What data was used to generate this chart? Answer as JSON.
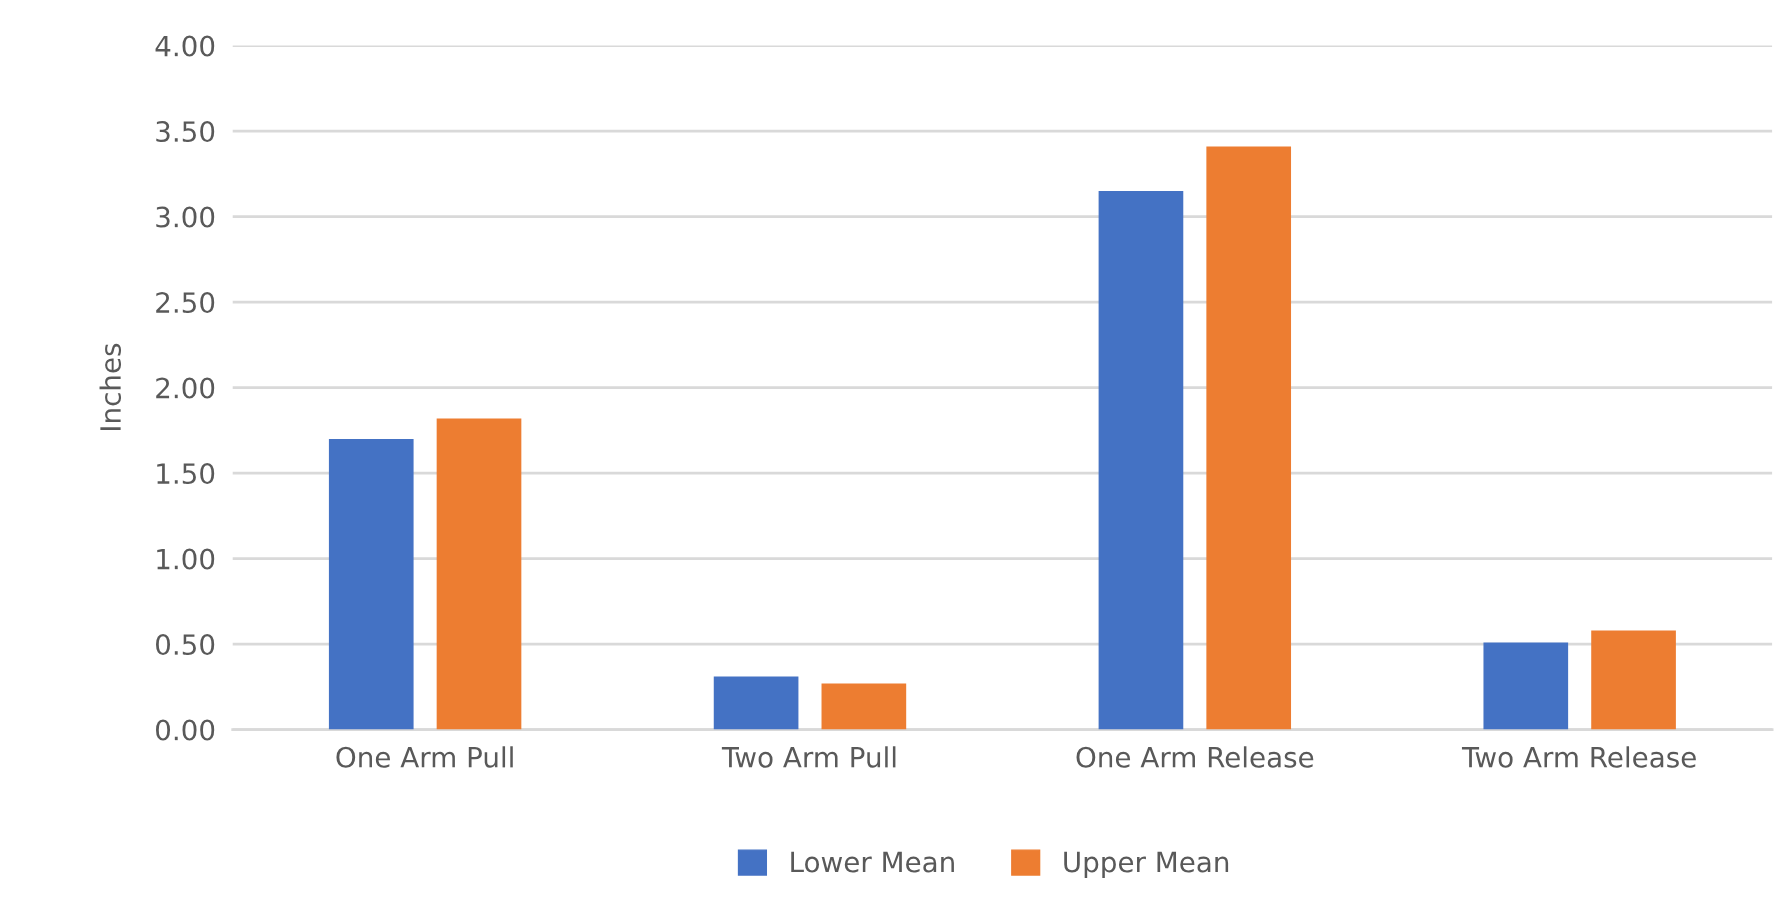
{
  "chart_data": {
    "type": "bar",
    "ylabel": "Inches",
    "categories": [
      "One Arm Pull",
      "Two Arm Pull",
      "One Arm Release",
      "Two Arm Release"
    ],
    "series": [
      {
        "name": "Lower Mean",
        "color": "#4472c4",
        "values": [
          1.7,
          0.31,
          3.15,
          0.51
        ]
      },
      {
        "name": "Upper Mean",
        "color": "#ed7d31",
        "values": [
          1.82,
          0.27,
          3.41,
          0.58
        ]
      }
    ],
    "ylim": [
      0,
      4
    ],
    "yticks": [
      {
        "value": 0,
        "label": "0.00"
      },
      {
        "value": 0.5,
        "label": "0.50"
      },
      {
        "value": 1,
        "label": "1.00"
      },
      {
        "value": 1.5,
        "label": "1.50"
      },
      {
        "value": 2,
        "label": "2.00"
      },
      {
        "value": 2.5,
        "label": "2.50"
      },
      {
        "value": 3,
        "label": "3.00"
      },
      {
        "value": 3.5,
        "label": "3.50"
      },
      {
        "value": 4,
        "label": "4.00"
      }
    ],
    "grid": "y",
    "legend": "bottom"
  }
}
